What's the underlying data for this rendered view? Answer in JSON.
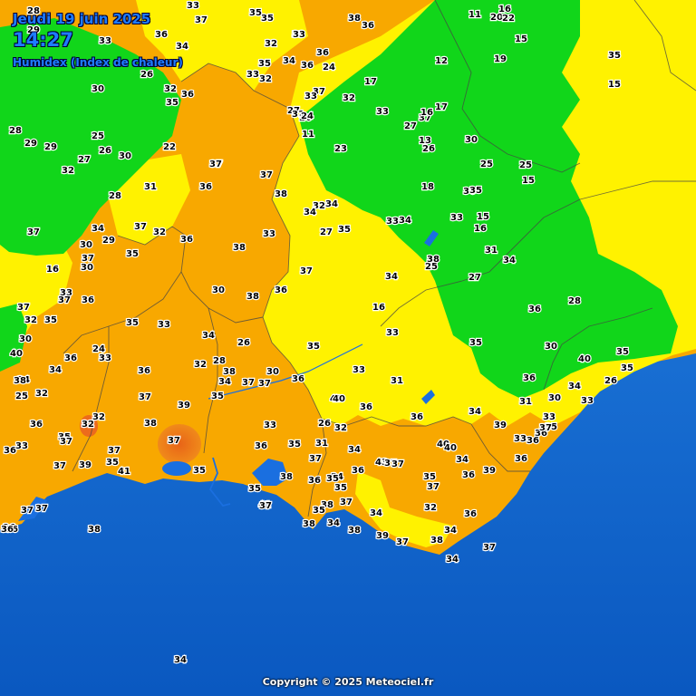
{
  "header": {
    "date": "Jeudi 19 juin 2025",
    "time": "14:27",
    "variable": "Humidex (Index de chaleur)"
  },
  "credit": "Copyright © 2025 Meteociel.fr",
  "colors": {
    "sea_deep": "#0a5ec8",
    "sea_shallow": "#1f7ee0",
    "humidex_low_green": "#11d61a",
    "humidex_mid_yellow": "#fff200",
    "humidex_high_orange": "#f8a800",
    "humidex_very_high": "#ec6b1c",
    "lakes": "#1a6fe0",
    "borders": "#444444"
  },
  "values": [
    "28",
    "29",
    "33",
    "37",
    "35",
    "35",
    "33",
    "38",
    "36",
    "11",
    "16",
    "20",
    "22",
    "15",
    "33",
    "36",
    "34",
    "32",
    "33",
    "24",
    "35",
    "34",
    "36",
    "33",
    "32",
    "36",
    "26",
    "37",
    "17",
    "12",
    "19",
    "35",
    "30",
    "32",
    "36",
    "35",
    "33",
    "27",
    "28",
    "29",
    "29",
    "25",
    "26",
    "27",
    "30",
    "32",
    "22",
    "11",
    "27",
    "37",
    "32",
    "33",
    "31",
    "26",
    "24",
    "23",
    "17",
    "16",
    "13",
    "26",
    "30",
    "25",
    "25",
    "15",
    "15",
    "37",
    "37",
    "38",
    "34",
    "35",
    "32",
    "31",
    "28",
    "37",
    "30",
    "18",
    "33",
    "34",
    "15",
    "27",
    "34",
    "36",
    "33",
    "37",
    "36",
    "38",
    "33",
    "16",
    "34",
    "32",
    "29",
    "30",
    "37",
    "36",
    "37",
    "35",
    "37",
    "31",
    "35",
    "25",
    "27",
    "34",
    "16",
    "30",
    "38",
    "36",
    "34",
    "33",
    "33",
    "16",
    "37",
    "36",
    "32",
    "35",
    "35",
    "33",
    "34",
    "36",
    "38",
    "30",
    "35",
    "40",
    "37",
    "36",
    "24",
    "33",
    "26",
    "35",
    "28",
    "30",
    "34",
    "24",
    "40",
    "35",
    "36",
    "32",
    "28",
    "38",
    "30",
    "33",
    "31",
    "26",
    "35",
    "37",
    "38",
    "32",
    "39",
    "35",
    "37",
    "34",
    "37",
    "36",
    "40",
    "36",
    "30",
    "25",
    "34",
    "36",
    "34",
    "31",
    "33",
    "35",
    "33",
    "33",
    "36",
    "36",
    "32",
    "32",
    "38",
    "40",
    "37",
    "33",
    "36",
    "35",
    "31",
    "26",
    "32",
    "34",
    "37",
    "36",
    "33",
    "35",
    "37",
    "35",
    "41",
    "39",
    "37",
    "36",
    "43",
    "37",
    "37",
    "35",
    "34",
    "36",
    "39",
    "40",
    "40",
    "36",
    "36",
    "37",
    "35",
    "38",
    "34",
    "37",
    "39",
    "36",
    "35",
    "36",
    "37",
    "35",
    "35",
    "41",
    "38",
    "37",
    "34",
    "32",
    "36",
    "37",
    "36",
    "37",
    "38",
    "34",
    "38",
    "39",
    "37",
    "38",
    "34",
    "37",
    "34",
    "38",
    "34",
    "35",
    "36",
    "36",
    "37",
    "37",
    "29",
    "37",
    "36",
    "34",
    "35",
    "35",
    "34",
    "34",
    "34",
    "35",
    "33",
    "34",
    "31",
    "35",
    "35",
    "34",
    "34",
    "34",
    "34",
    "32",
    "32",
    "29"
  ]
}
